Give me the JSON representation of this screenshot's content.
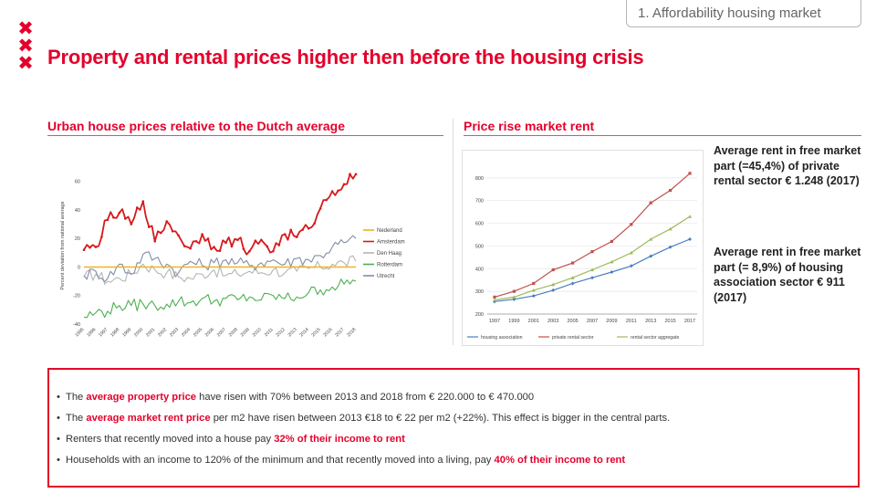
{
  "logo": {
    "glyphs": [
      "✖",
      "✖",
      "✖"
    ]
  },
  "section": "1. Affordability housing market",
  "title": "Property and rental prices higher then before the housing crisis",
  "left_panel": {
    "title": "Urban house prices relative to the Dutch average"
  },
  "right_panel": {
    "title": "Price rise market rent"
  },
  "notes": {
    "free_market": "Average rent in free market part (=45,4%) of private rental sector € 1.248 (2017)",
    "housing_assoc": "Average rent in free market part (= 8,9%) of housing association sector € 911 (2017)"
  },
  "bullets": [
    {
      "pre": "The ",
      "hl": "average property price",
      "post": " have risen with 70% between 2013 and 2018 from € 220.000 to € 470.000"
    },
    {
      "pre": "The ",
      "hl": "average market rent price",
      "post": " per m2 have risen between 2013 €18 to € 22 per m2 (+22%). This effect is bigger in the central parts."
    },
    {
      "pre": "Renters that recently moved into a house pay ",
      "hl": "32% of their income to rent",
      "post": ""
    },
    {
      "pre": "Households with an income to 120% of the minimum and that recently moved into a living, pay ",
      "hl": "40% of their income to rent",
      "post": ""
    }
  ],
  "chart_data": [
    {
      "type": "line",
      "title": "Urban house prices relative to the Dutch average",
      "ylabel": "Percent deviation from national average",
      "xlabel": "",
      "ylim": [
        -40,
        70
      ],
      "yticks": [
        -40,
        -20,
        0,
        20,
        40,
        60
      ],
      "xticks": [
        "1995",
        "1996",
        "1997",
        "1998",
        "1999",
        "2000",
        "2001",
        "2002",
        "2003",
        "2004",
        "2005",
        "2006",
        "2007",
        "2008",
        "2009",
        "2010",
        "2011",
        "2012",
        "2013",
        "2014",
        "2015",
        "2016",
        "2017",
        "2018"
      ],
      "legend_position": "right",
      "series": [
        {
          "name": "Nederland",
          "color": "#f0b31e",
          "x": [
            1995,
            2018
          ],
          "values": [
            0,
            0
          ]
        },
        {
          "name": "Amsterdam",
          "color": "#d7191c",
          "x": [
            1995,
            1996,
            1997,
            1998,
            1999,
            2000,
            2001,
            2002,
            2003,
            2004,
            2005,
            2006,
            2007,
            2008,
            2009,
            2010,
            2011,
            2012,
            2013,
            2014,
            2015,
            2016,
            2017,
            2018
          ],
          "values": [
            12,
            14,
            33,
            38,
            30,
            46,
            18,
            32,
            22,
            13,
            23,
            14,
            17,
            19,
            11,
            19,
            11,
            23,
            21,
            27,
            41,
            53,
            58,
            65
          ]
        },
        {
          "name": "Den Haag",
          "color": "#b5b5b5",
          "x": [
            1995,
            1996,
            1997,
            1998,
            1999,
            2000,
            2001,
            2002,
            2003,
            2004,
            2005,
            2006,
            2007,
            2008,
            2009,
            2010,
            2011,
            2012,
            2013,
            2014,
            2015,
            2016,
            2017,
            2018
          ],
          "values": [
            -7,
            -5,
            -10,
            -8,
            -5,
            2,
            -2,
            -4,
            -7,
            -8,
            -5,
            -2,
            -6,
            -5,
            -3,
            -4,
            -2,
            -4,
            -3,
            -1,
            0,
            2,
            3,
            4
          ]
        },
        {
          "name": "Rotterdam",
          "color": "#4caf50",
          "x": [
            1995,
            1996,
            1997,
            1998,
            1999,
            2000,
            2001,
            2002,
            2003,
            2004,
            2005,
            2006,
            2007,
            2008,
            2009,
            2010,
            2011,
            2012,
            2013,
            2014,
            2015,
            2016,
            2017,
            2018
          ],
          "values": [
            -35,
            -32,
            -31,
            -27,
            -27,
            -26,
            -27,
            -26,
            -24,
            -25,
            -22,
            -24,
            -22,
            -23,
            -21,
            -23,
            -20,
            -22,
            -21,
            -18,
            -16,
            -14,
            -12,
            -10
          ]
        },
        {
          "name": "Utrecht",
          "color": "#7f8fa6",
          "x": [
            1995,
            1996,
            1997,
            1998,
            1999,
            2000,
            2001,
            2002,
            2003,
            2004,
            2005,
            2006,
            2007,
            2008,
            2009,
            2010,
            2011,
            2012,
            2013,
            2014,
            2015,
            2016,
            2017,
            2018
          ],
          "values": [
            -6,
            -3,
            -8,
            2,
            -5,
            9,
            6,
            2,
            -4,
            4,
            1,
            3,
            5,
            3,
            1,
            3,
            5,
            2,
            6,
            5,
            8,
            14,
            17,
            20
          ]
        }
      ]
    },
    {
      "type": "line",
      "title": "Price rise market rent",
      "xlabel": "",
      "ylabel": "",
      "ylim": [
        200,
        900
      ],
      "yticks": [
        200,
        300,
        400,
        500,
        600,
        700,
        800
      ],
      "categories": [
        "1997",
        "1999",
        "2001",
        "2003",
        "2005",
        "2007",
        "2009",
        "2011",
        "2013",
        "2015",
        "2017"
      ],
      "legend_position": "bottom",
      "series": [
        {
          "name": "housing association",
          "color": "#4a7fc1",
          "values": [
            255,
            265,
            280,
            305,
            335,
            360,
            385,
            412,
            455,
            495,
            530
          ]
        },
        {
          "name": "private rental sector",
          "color": "#c0504d",
          "values": [
            275,
            300,
            335,
            395,
            425,
            475,
            520,
            595,
            690,
            745,
            820
          ]
        },
        {
          "name": "rental sector aggregate",
          "color": "#9bbb59",
          "values": [
            262,
            275,
            305,
            330,
            360,
            395,
            430,
            470,
            530,
            575,
            630
          ]
        }
      ]
    }
  ]
}
